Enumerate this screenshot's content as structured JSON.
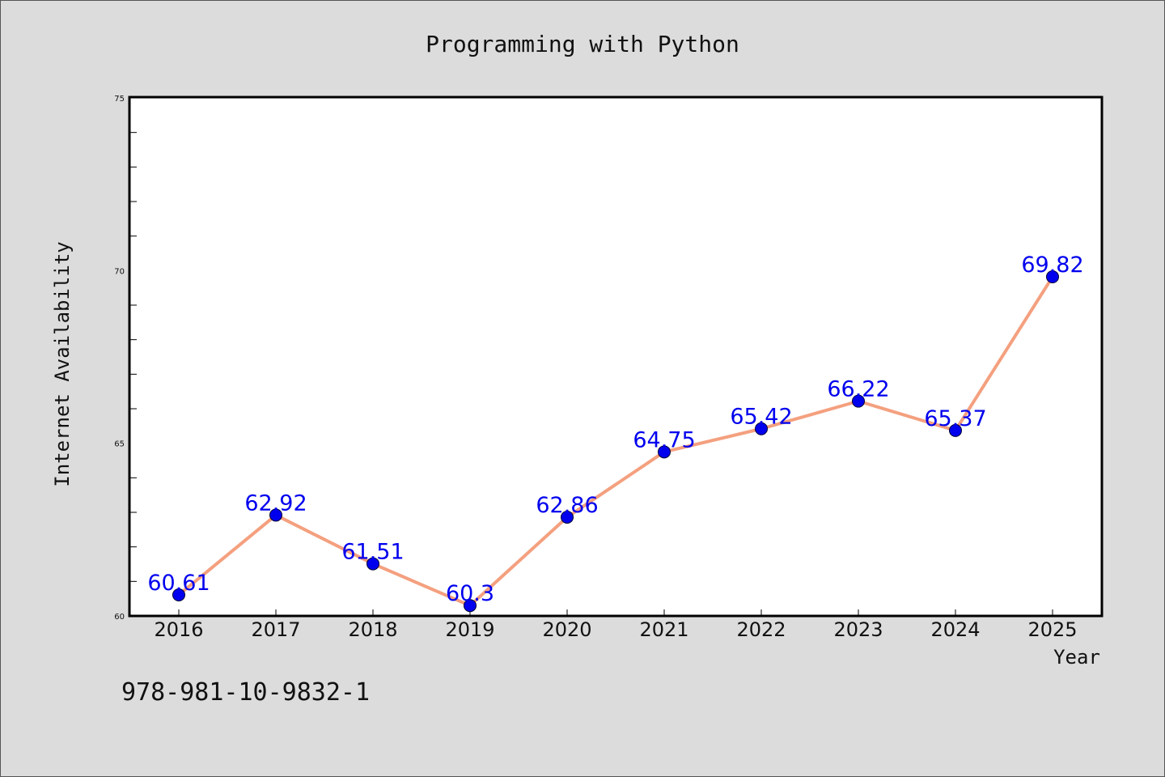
{
  "chart_data": {
    "type": "line",
    "title": "Programming with Python",
    "xlabel": "Year",
    "ylabel": "Internet Availability",
    "categories": [
      "2016",
      "2017",
      "2018",
      "2019",
      "2020",
      "2021",
      "2022",
      "2023",
      "2024",
      "2025"
    ],
    "series": [
      {
        "values": [
          60.61,
          62.92,
          61.51,
          60.3,
          62.86,
          64.75,
          65.42,
          66.22,
          65.37,
          69.82
        ]
      }
    ],
    "data_labels": [
      "60.61",
      "62.92",
      "61.51",
      "60.3",
      "62.86",
      "64.75",
      "65.42",
      "66.22",
      "65.37",
      "69.82"
    ],
    "ylim": [
      60,
      75
    ],
    "y_ticks": [
      60,
      65,
      70,
      75
    ],
    "y_minor_step": 1,
    "grid": false,
    "legend": "none",
    "colors": {
      "line": "#f4a07f",
      "marker": "#0000ee",
      "data_label": "#0000ee",
      "plot_background": "#ffffff",
      "figure_background": "#dcdcdc"
    }
  },
  "annotation": {
    "isbn": "978-981-10-9832-1"
  }
}
